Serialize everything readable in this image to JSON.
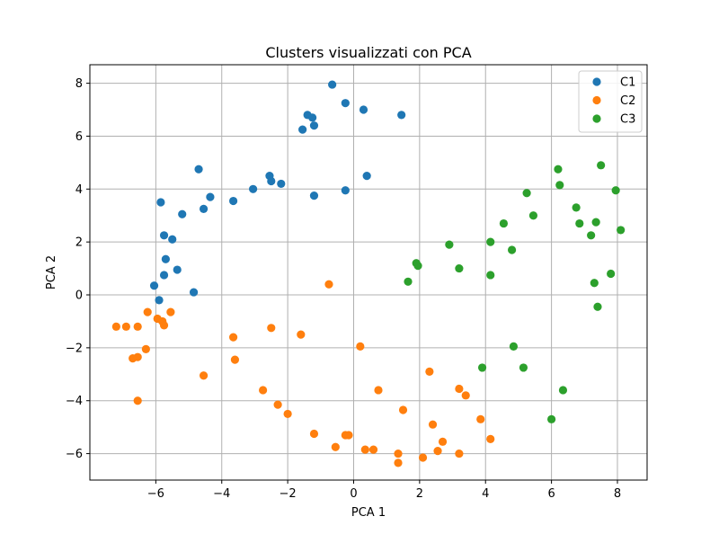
{
  "chart_data": {
    "type": "scatter",
    "title": "Clusters visualizzati con PCA",
    "xlabel": "PCA 1",
    "ylabel": "PCA 2",
    "xlim": [
      -8.0,
      8.9
    ],
    "ylim": [
      -7.0,
      8.7
    ],
    "xticks": [
      -6,
      -4,
      -2,
      0,
      2,
      4,
      6,
      8
    ],
    "yticks": [
      -6,
      -4,
      -2,
      0,
      2,
      4,
      6,
      8
    ],
    "xtick_labels": [
      "−6",
      "−4",
      "−2",
      "0",
      "2",
      "4",
      "6",
      "8"
    ],
    "ytick_labels": [
      "−6",
      "−4",
      "−2",
      "0",
      "2",
      "4",
      "6",
      "8"
    ],
    "grid": true,
    "legend_position": "top-right",
    "series": [
      {
        "name": "C1",
        "color": "#1f77b4",
        "points": [
          [
            -0.65,
            7.95
          ],
          [
            -0.25,
            7.25
          ],
          [
            0.3,
            7.0
          ],
          [
            1.45,
            6.8
          ],
          [
            -1.4,
            6.8
          ],
          [
            -1.25,
            6.7
          ],
          [
            -1.55,
            6.25
          ],
          [
            -1.2,
            6.4
          ],
          [
            -4.7,
            4.75
          ],
          [
            -2.55,
            4.5
          ],
          [
            -2.5,
            4.3
          ],
          [
            -2.2,
            4.2
          ],
          [
            0.4,
            4.5
          ],
          [
            -3.05,
            4.0
          ],
          [
            -0.25,
            3.95
          ],
          [
            -1.2,
            3.75
          ],
          [
            -4.35,
            3.7
          ],
          [
            -3.65,
            3.55
          ],
          [
            -5.85,
            3.5
          ],
          [
            -4.55,
            3.25
          ],
          [
            -5.2,
            3.05
          ],
          [
            -5.75,
            2.25
          ],
          [
            -5.5,
            2.1
          ],
          [
            -5.7,
            1.35
          ],
          [
            -5.35,
            0.95
          ],
          [
            -5.75,
            0.75
          ],
          [
            -6.05,
            0.35
          ],
          [
            -4.85,
            0.1
          ],
          [
            -5.9,
            -0.2
          ]
        ]
      },
      {
        "name": "C2",
        "color": "#ff7f0e",
        "points": [
          [
            -0.75,
            0.4
          ],
          [
            -6.25,
            -0.65
          ],
          [
            -5.55,
            -0.65
          ],
          [
            -5.95,
            -0.9
          ],
          [
            -5.8,
            -1.0
          ],
          [
            -5.75,
            -1.15
          ],
          [
            -7.2,
            -1.2
          ],
          [
            -6.9,
            -1.2
          ],
          [
            -6.55,
            -1.2
          ],
          [
            -2.5,
            -1.25
          ],
          [
            -1.6,
            -1.5
          ],
          [
            -3.65,
            -1.6
          ],
          [
            0.2,
            -1.95
          ],
          [
            -6.3,
            -2.05
          ],
          [
            -6.7,
            -2.4
          ],
          [
            -6.55,
            -2.35
          ],
          [
            -3.6,
            -2.45
          ],
          [
            2.3,
            -2.9
          ],
          [
            -4.55,
            -3.05
          ],
          [
            -2.75,
            -3.6
          ],
          [
            0.75,
            -3.6
          ],
          [
            3.2,
            -3.55
          ],
          [
            3.4,
            -3.8
          ],
          [
            -6.55,
            -4.0
          ],
          [
            -2.3,
            -4.15
          ],
          [
            1.5,
            -4.35
          ],
          [
            -2.0,
            -4.5
          ],
          [
            3.85,
            -4.7
          ],
          [
            2.4,
            -4.9
          ],
          [
            -1.2,
            -5.25
          ],
          [
            -0.25,
            -5.3
          ],
          [
            -0.15,
            -5.3
          ],
          [
            4.15,
            -5.45
          ],
          [
            2.7,
            -5.55
          ],
          [
            -0.55,
            -5.75
          ],
          [
            0.35,
            -5.85
          ],
          [
            0.6,
            -5.85
          ],
          [
            2.55,
            -5.9
          ],
          [
            1.35,
            -6.0
          ],
          [
            3.2,
            -6.0
          ],
          [
            2.1,
            -6.15
          ],
          [
            1.35,
            -6.35
          ]
        ]
      },
      {
        "name": "C3",
        "color": "#2ca02c",
        "points": [
          [
            7.5,
            4.9
          ],
          [
            6.2,
            4.75
          ],
          [
            6.25,
            4.15
          ],
          [
            7.95,
            3.95
          ],
          [
            5.25,
            3.85
          ],
          [
            6.75,
            3.3
          ],
          [
            5.45,
            3.0
          ],
          [
            7.35,
            2.75
          ],
          [
            6.85,
            2.7
          ],
          [
            4.55,
            2.7
          ],
          [
            8.1,
            2.45
          ],
          [
            7.2,
            2.25
          ],
          [
            4.15,
            2.0
          ],
          [
            2.9,
            1.9
          ],
          [
            4.8,
            1.7
          ],
          [
            1.9,
            1.2
          ],
          [
            1.95,
            1.1
          ],
          [
            3.2,
            1.0
          ],
          [
            4.15,
            0.75
          ],
          [
            7.8,
            0.8
          ],
          [
            1.65,
            0.5
          ],
          [
            7.3,
            0.45
          ],
          [
            7.4,
            -0.45
          ],
          [
            4.85,
            -1.95
          ],
          [
            3.9,
            -2.75
          ],
          [
            5.15,
            -2.75
          ],
          [
            6.35,
            -3.6
          ],
          [
            6.0,
            -4.7
          ]
        ]
      }
    ]
  }
}
